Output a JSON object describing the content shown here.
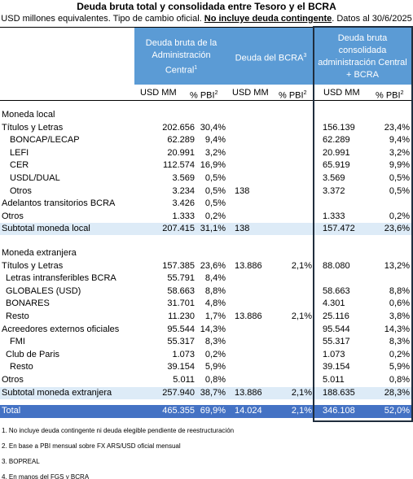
{
  "header": {
    "title": "Deuda bruta total y consolidada entre Tesoro y el BCRA",
    "subtitle": {
      "before": "USD millones equivalentes. Tipo de cambio oficial. ",
      "bold": "No incluye deuda contingente",
      "after": ". Datos al 30/6/2025"
    }
  },
  "table": {
    "groups": [
      {
        "label": "Deuda bruta de la Administración Central",
        "note": "1"
      },
      {
        "label": "Deuda del BCRA",
        "note": "3"
      },
      {
        "label": "Deuda bruta consolidada administración Central + BCRA"
      }
    ],
    "columns": [
      {
        "label": "USD MM"
      },
      {
        "label": "% PBI",
        "note": "2"
      },
      {
        "label": "USD MM"
      },
      {
        "label": "% PBI",
        "note": "2"
      },
      {
        "label": "USD MM"
      },
      {
        "label": "% PBI",
        "note": "2"
      }
    ],
    "sections": [
      {
        "title": "Moneda local",
        "rows": [
          {
            "label": "Títulos y Letras",
            "indent": 0,
            "cells": [
              "202.656",
              "30,4%",
              null,
              null,
              "156.139",
              "23,4%"
            ]
          },
          {
            "label": "BONCAP/LECAP",
            "indent": 2,
            "cells": [
              "62.289",
              "9,4%",
              null,
              null,
              "62.289",
              "9,4%"
            ]
          },
          {
            "label": "LEFI",
            "indent": 2,
            "cells": [
              "20.991",
              "3,2%",
              null,
              null,
              "20.991",
              "3,2%"
            ]
          },
          {
            "label": "CER",
            "indent": 2,
            "cells": [
              "112.574",
              "16,9%",
              null,
              null,
              "65.919",
              "9,9%"
            ]
          },
          {
            "label": "USDL/DUAL",
            "indent": 2,
            "cells": [
              "3.569",
              "0,5%",
              null,
              null,
              "3.569",
              "0,5%"
            ]
          },
          {
            "label": "Otros",
            "indent": 2,
            "cells": [
              "3.234",
              "0,5%",
              "138",
              null,
              "3.372",
              "0,5%"
            ]
          },
          {
            "label": "Adelantos transitorios BCRA",
            "indent": 0,
            "cells": [
              "3.426",
              "0,5%",
              null,
              null,
              null,
              null
            ]
          },
          {
            "label": "Otros",
            "indent": 0,
            "cells": [
              "1.333",
              "0,2%",
              null,
              null,
              "1.333",
              "0,2%"
            ]
          }
        ],
        "subtotal": {
          "label": "Subtotal moneda local",
          "cells": [
            "207.415",
            "31,1%",
            "138",
            null,
            "157.472",
            "23,6%"
          ]
        }
      },
      {
        "title": "Moneda extranjera",
        "rows": [
          {
            "label": "Títulos y Letras",
            "indent": 0,
            "cells": [
              "157.385",
              "23,6%",
              "13.886",
              "2,1%",
              "88.080",
              "13,2%"
            ]
          },
          {
            "label": "Letras intransferibles BCRA",
            "indent": 1,
            "cells": [
              "55.791",
              "8,4%",
              null,
              null,
              null,
              null
            ]
          },
          {
            "label": "GLOBALES (USD)",
            "indent": 1,
            "cells": [
              "58.663",
              "8,8%",
              null,
              null,
              "58.663",
              "8,8%"
            ]
          },
          {
            "label": "BONARES",
            "indent": 1,
            "cells": [
              "31.701",
              "4,8%",
              null,
              null,
              "4.301",
              "0,6%"
            ]
          },
          {
            "label": "Resto",
            "indent": 1,
            "cells": [
              "11.230",
              "1,7%",
              "13.886",
              "2,1%",
              "25.116",
              "3,8%"
            ]
          },
          {
            "label": "Acreedores externos oficiales",
            "indent": 0,
            "cells": [
              "95.544",
              "14,3%",
              null,
              null,
              "95.544",
              "14,3%"
            ]
          },
          {
            "label": "FMI",
            "indent": 2,
            "cells": [
              "55.317",
              "8,3%",
              null,
              null,
              "55.317",
              "8,3%"
            ]
          },
          {
            "label": "Club de Paris",
            "indent": 1,
            "cells": [
              "1.073",
              "0,2%",
              null,
              null,
              "1.073",
              "0,2%"
            ]
          },
          {
            "label": "Resto",
            "indent": 2,
            "cells": [
              "39.154",
              "5,9%",
              null,
              null,
              "39.154",
              "5,9%"
            ]
          },
          {
            "label": "Otros",
            "indent": 0,
            "cells": [
              "5.011",
              "0,8%",
              null,
              null,
              "5.011",
              "0,8%"
            ]
          }
        ],
        "subtotal": {
          "label": "Subtotal moneda extranjera",
          "cells": [
            "257.940",
            "38,7%",
            "13.886",
            "2,1%",
            "188.635",
            "28,3%"
          ]
        }
      }
    ],
    "total": {
      "label": "Total",
      "cells": [
        "465.355",
        "69,9%",
        "14.024",
        "2,1%",
        "346.108",
        "52,0%"
      ]
    }
  },
  "footnotes": [
    "1. No incluye deuda contingente ni deuda elegible pendiente de reestructuración",
    "2. En base a PBI mensual sobre FX ARS/USD oficial mensual",
    "3. BOPREAL",
    "4. En manos del FGS y BCRA"
  ]
}
